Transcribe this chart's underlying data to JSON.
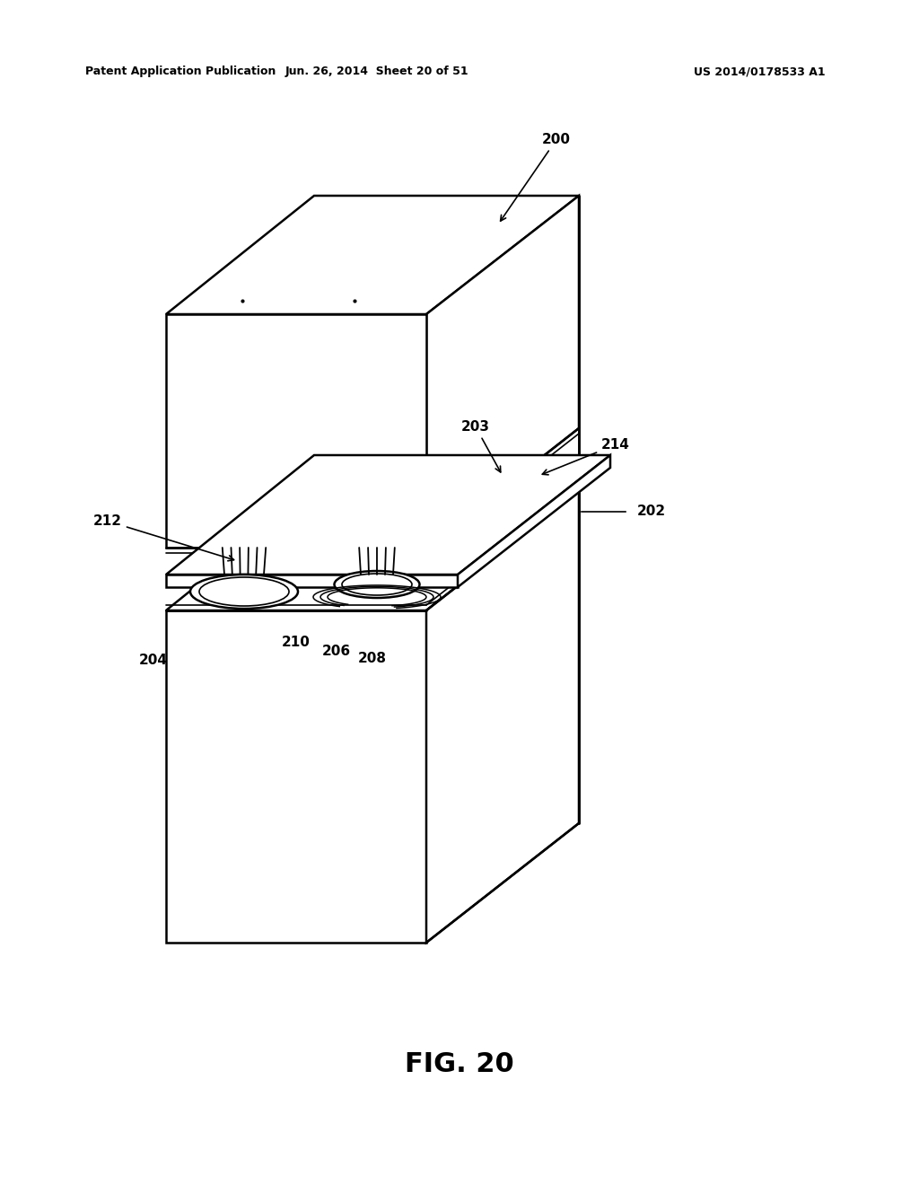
{
  "title": "FIG. 20",
  "header_left": "Patent Application Publication",
  "header_center": "Jun. 26, 2014  Sheet 20 of 51",
  "header_right": "US 2014/0178533 A1",
  "background_color": "#ffffff",
  "line_color": "#000000"
}
